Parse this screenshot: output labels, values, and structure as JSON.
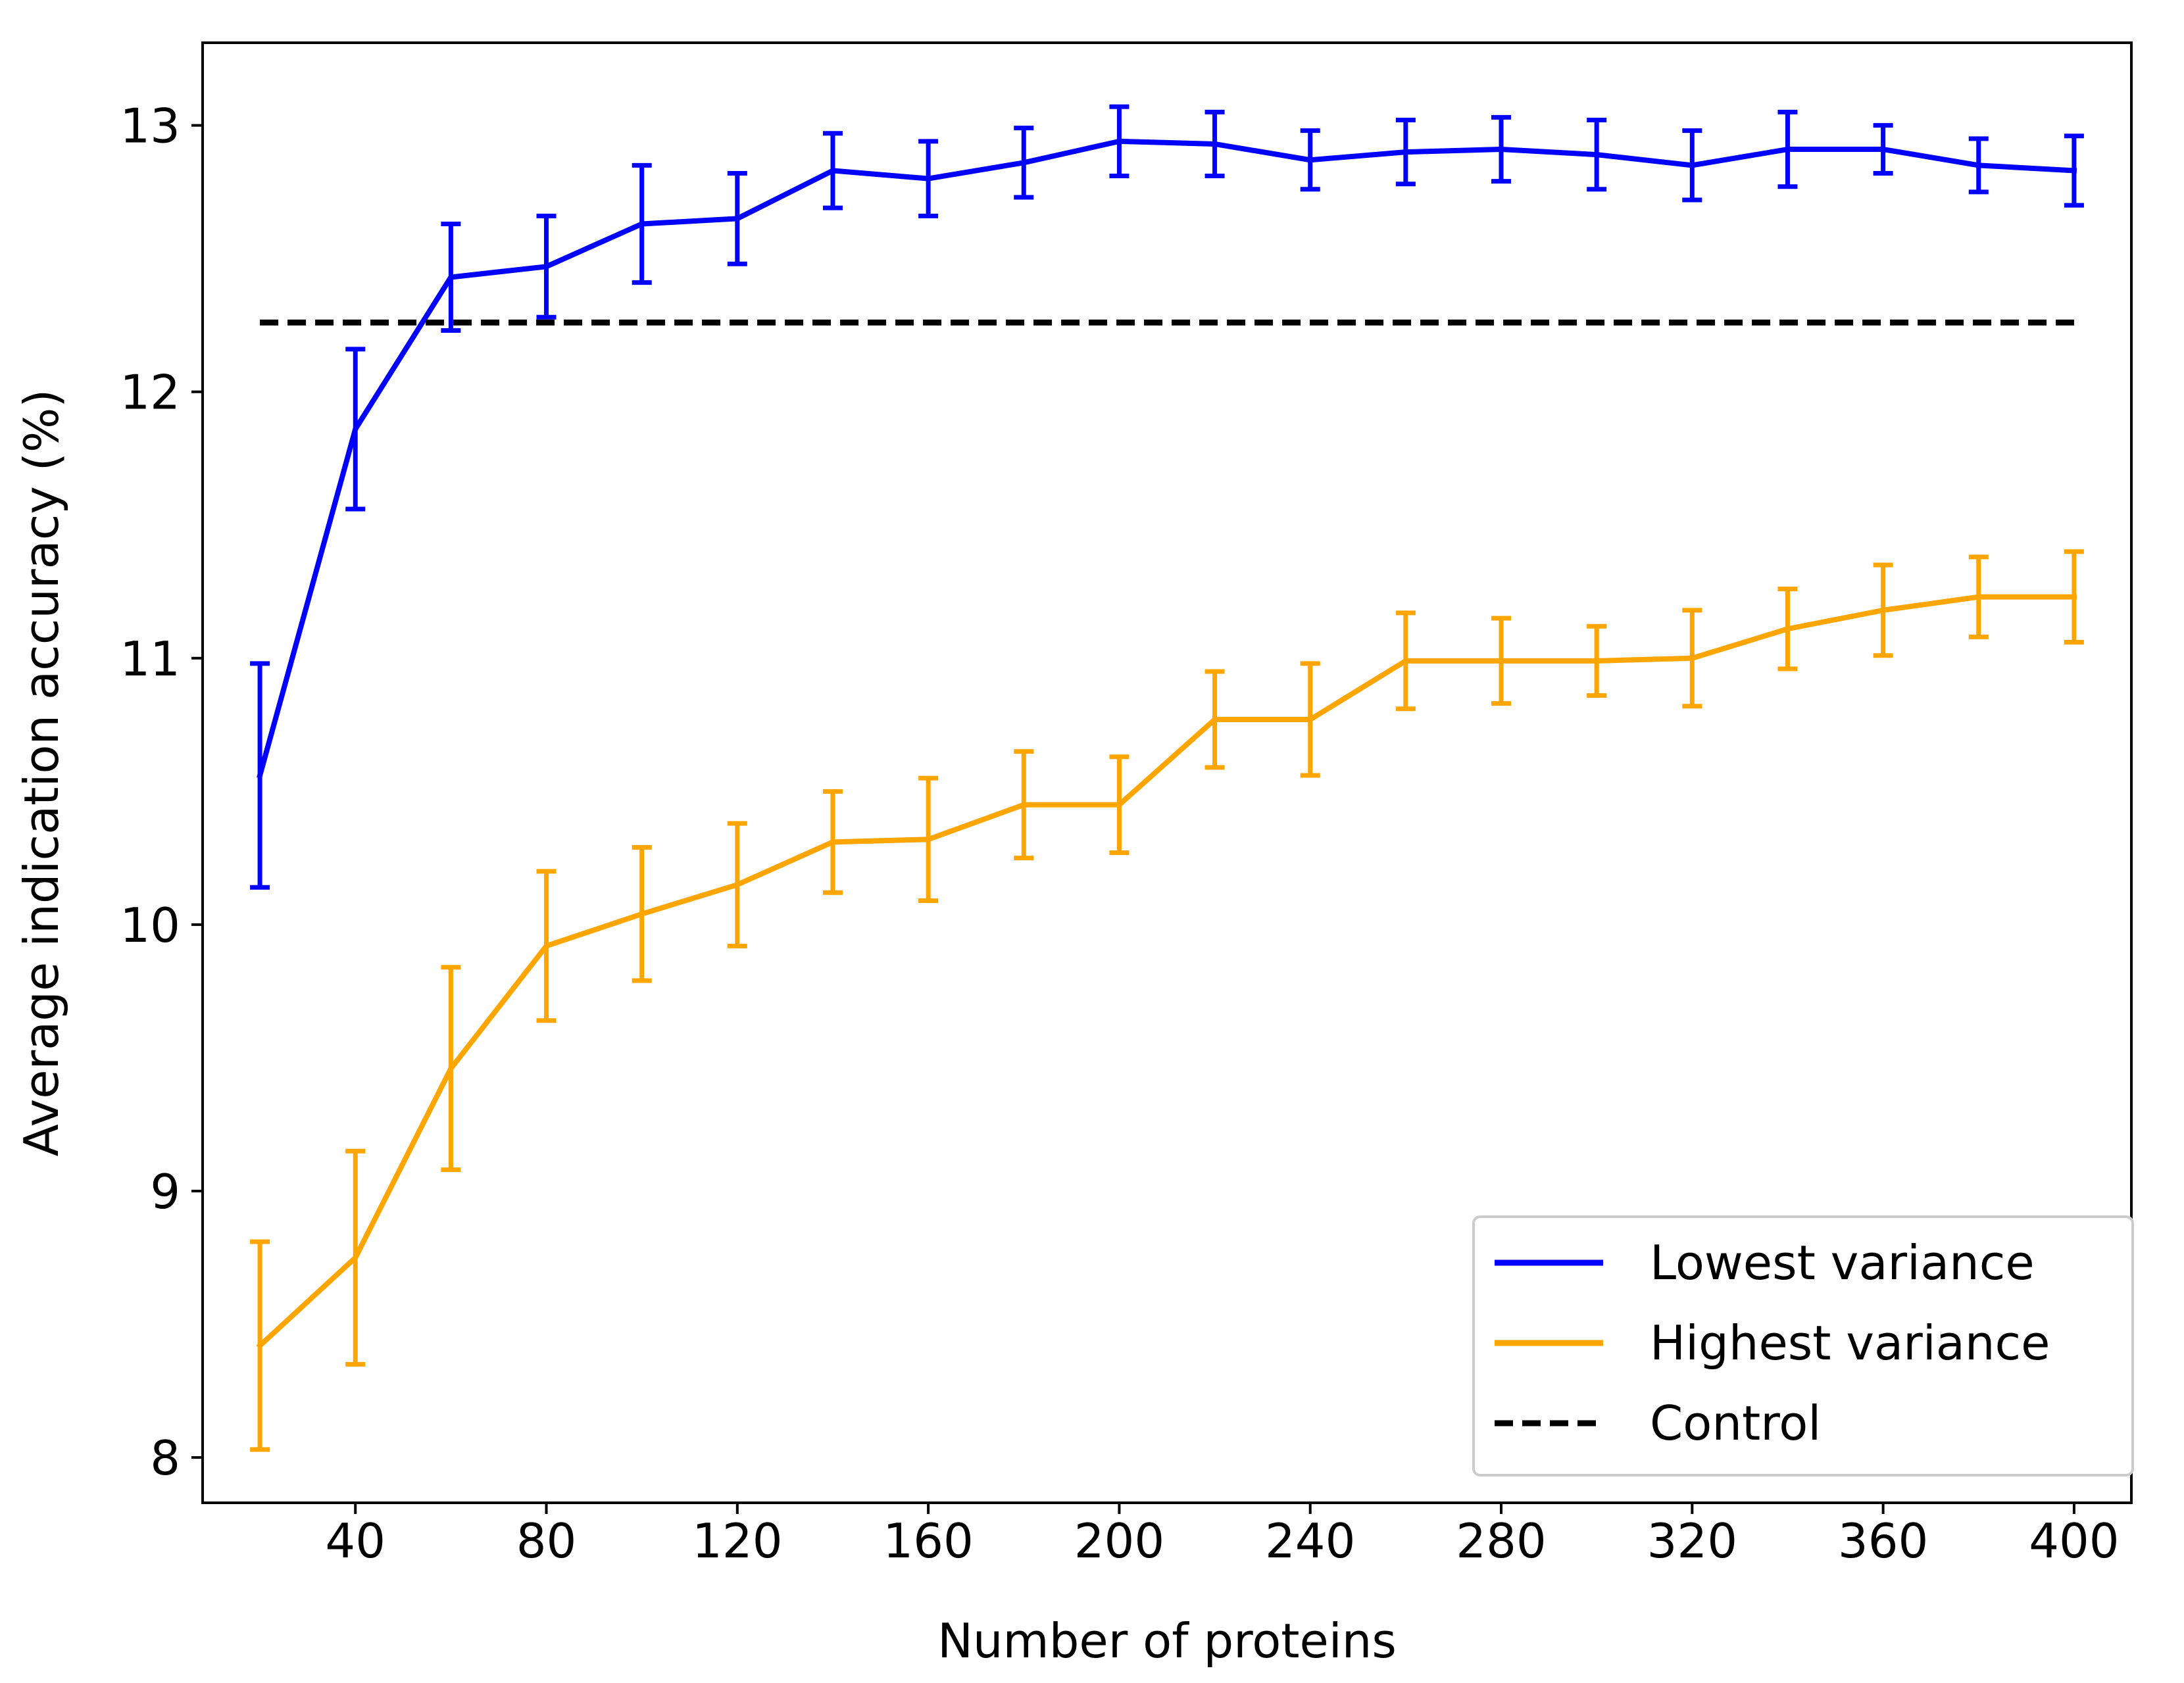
{
  "chart_data": {
    "type": "line",
    "title": "",
    "xlabel": "Number of proteins",
    "ylabel": "Average indication accuracy (%)",
    "xlim": [
      8,
      412
    ],
    "ylim": [
      7.83,
      13.31
    ],
    "xticks": [
      40,
      80,
      120,
      160,
      200,
      240,
      280,
      320,
      360,
      400
    ],
    "xtick_labels": [
      "40",
      "80",
      "120",
      "160",
      "200",
      "240",
      "280",
      "320",
      "360",
      "400"
    ],
    "yticks": [
      8,
      9,
      10,
      11,
      12,
      13
    ],
    "ytick_labels": [
      "8",
      "9",
      "10",
      "11",
      "12",
      "13"
    ],
    "grid": false,
    "legend_position": "lower-right",
    "x": [
      20,
      40,
      60,
      80,
      100,
      120,
      140,
      160,
      180,
      200,
      220,
      240,
      260,
      280,
      300,
      320,
      340,
      360,
      380,
      400
    ],
    "series": [
      {
        "name": "Lowest variance",
        "color": "#0000ff",
        "style": "solid",
        "values": [
          10.56,
          11.86,
          12.43,
          12.47,
          12.63,
          12.65,
          12.83,
          12.8,
          12.86,
          12.94,
          12.93,
          12.87,
          12.9,
          12.91,
          12.89,
          12.85,
          12.91,
          12.91,
          12.85,
          12.83
        ],
        "errors": [
          0.42,
          0.3,
          0.2,
          0.19,
          0.22,
          0.17,
          0.14,
          0.14,
          0.13,
          0.13,
          0.12,
          0.11,
          0.12,
          0.12,
          0.13,
          0.13,
          0.14,
          0.09,
          0.1,
          0.13
        ]
      },
      {
        "name": "Highest variance",
        "color": "#ffa500",
        "style": "solid",
        "values": [
          8.42,
          8.75,
          9.46,
          9.92,
          10.04,
          10.15,
          10.31,
          10.32,
          10.45,
          10.45,
          10.77,
          10.77,
          10.99,
          10.99,
          10.99,
          11.0,
          11.11,
          11.18,
          11.23,
          11.23
        ],
        "errors": [
          0.39,
          0.4,
          0.38,
          0.28,
          0.25,
          0.23,
          0.19,
          0.23,
          0.2,
          0.18,
          0.18,
          0.21,
          0.18,
          0.16,
          0.13,
          0.18,
          0.15,
          0.17,
          0.15,
          0.17
        ]
      },
      {
        "name": "Control",
        "color": "#000000",
        "style": "dashed",
        "x_range": [
          20,
          400
        ],
        "value": 12.26
      }
    ]
  }
}
